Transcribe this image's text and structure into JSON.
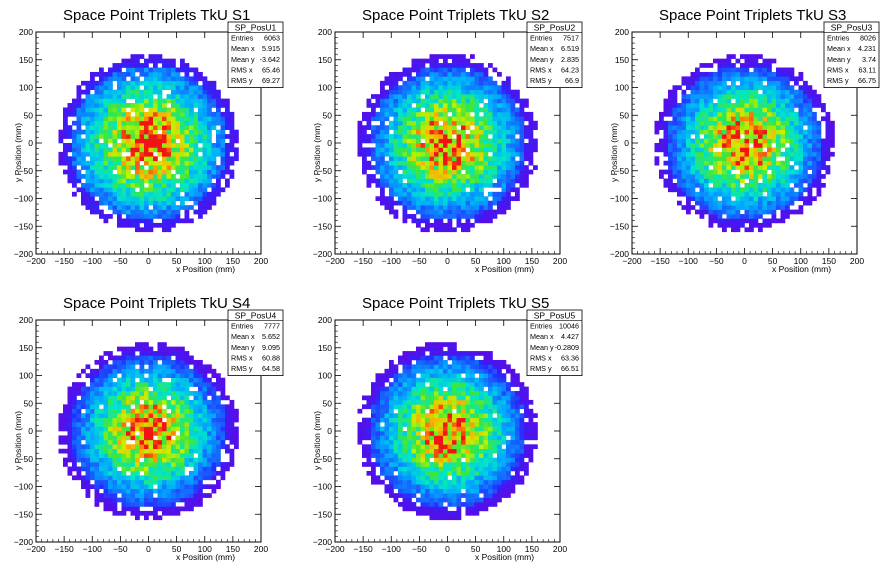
{
  "chart_data": [
    {
      "type": "heatmap",
      "title": "Space Point Triplets TkU S1",
      "xlabel": "x Position (mm)",
      "ylabel": "y Position (mm)",
      "xlim": [
        -200,
        200
      ],
      "ylim": [
        -200,
        200
      ],
      "xticks": [
        "−200",
        "−150",
        "−100",
        "−50",
        "0",
        "50",
        "100",
        "150",
        "200"
      ],
      "yticks": [
        "−200",
        "−150",
        "−100",
        "−50",
        "0",
        "50",
        "100",
        "150",
        "200"
      ],
      "stats": {
        "name": "SP_PosU1",
        "rows": [
          [
            "Entries",
            "6063"
          ],
          [
            "Mean x",
            "5.915"
          ],
          [
            "Mean y",
            "-3.642"
          ],
          [
            "RMS x",
            "65.46"
          ],
          [
            "RMS y",
            "69.27"
          ]
        ]
      },
      "radius_mm": 160,
      "seed": 11,
      "peak_rms": 67
    },
    {
      "type": "heatmap",
      "title": "Space Point Triplets TkU S2",
      "xlabel": "x Position (mm)",
      "ylabel": "y Position (mm)",
      "xlim": [
        -200,
        200
      ],
      "ylim": [
        -200,
        200
      ],
      "xticks": [
        "−200",
        "−150",
        "−100",
        "−50",
        "0",
        "50",
        "100",
        "150",
        "200"
      ],
      "yticks": [
        "−200",
        "−150",
        "−100",
        "−50",
        "0",
        "50",
        "100",
        "150",
        "200"
      ],
      "stats": {
        "name": "SP_PosU2",
        "rows": [
          [
            "Entries",
            "7517"
          ],
          [
            "Mean x",
            "6.519"
          ],
          [
            "Mean y",
            "2.835"
          ],
          [
            "RMS x",
            "64.23"
          ],
          [
            "RMS y",
            "66.9"
          ]
        ]
      },
      "radius_mm": 160,
      "seed": 23,
      "peak_rms": 64
    },
    {
      "type": "heatmap",
      "title": "Space Point Triplets TkU S3",
      "xlabel": "x Position (mm)",
      "ylabel": "y Position (mm)",
      "xlim": [
        -200,
        200
      ],
      "ylim": [
        -200,
        200
      ],
      "xticks": [
        "−200",
        "−150",
        "−100",
        "−50",
        "0",
        "50",
        "100",
        "150",
        "200"
      ],
      "yticks": [
        "−200",
        "−150",
        "−100",
        "−50",
        "0",
        "50",
        "100",
        "150",
        "200"
      ],
      "stats": {
        "name": "SP_PosU3",
        "rows": [
          [
            "Entries",
            "8026"
          ],
          [
            "Mean x",
            "4.231"
          ],
          [
            "Mean y",
            "3.74"
          ],
          [
            "RMS x",
            "63.11"
          ],
          [
            "RMS y",
            "66.75"
          ]
        ]
      },
      "radius_mm": 160,
      "seed": 37,
      "peak_rms": 63
    },
    {
      "type": "heatmap",
      "title": "Space Point Triplets TkU S4",
      "xlabel": "x Position (mm)",
      "ylabel": "y Position (mm)",
      "xlim": [
        -200,
        200
      ],
      "ylim": [
        -200,
        200
      ],
      "xticks": [
        "−200",
        "−150",
        "−100",
        "−50",
        "0",
        "50",
        "100",
        "150",
        "200"
      ],
      "yticks": [
        "−200",
        "−150",
        "−100",
        "−50",
        "0",
        "50",
        "100",
        "150",
        "200"
      ],
      "stats": {
        "name": "SP_PosU4",
        "rows": [
          [
            "Entries",
            "7777"
          ],
          [
            "Mean x",
            "5.652"
          ],
          [
            "Mean y",
            "9.095"
          ],
          [
            "RMS x",
            "60.88"
          ],
          [
            "RMS y",
            "64.58"
          ]
        ]
      },
      "radius_mm": 160,
      "seed": 41,
      "peak_rms": 61
    },
    {
      "type": "heatmap",
      "title": "Space Point Triplets TkU S5",
      "xlabel": "x Position (mm)",
      "ylabel": "y Position (mm)",
      "xlim": [
        -200,
        200
      ],
      "ylim": [
        -200,
        200
      ],
      "xticks": [
        "−200",
        "−150",
        "−100",
        "−50",
        "0",
        "50",
        "100",
        "150",
        "200"
      ],
      "yticks": [
        "−200",
        "−150",
        "−100",
        "−50",
        "0",
        "50",
        "100",
        "150",
        "200"
      ],
      "stats": {
        "name": "SP_PosU5",
        "rows": [
          [
            "Entries",
            "10046"
          ],
          [
            "Mean x",
            "4.427"
          ],
          [
            "Mean y",
            "-0.2809"
          ],
          [
            "RMS x",
            "63.36"
          ],
          [
            "RMS y",
            "66.51"
          ]
        ]
      },
      "radius_mm": 160,
      "seed": 53,
      "peak_rms": 62
    }
  ]
}
